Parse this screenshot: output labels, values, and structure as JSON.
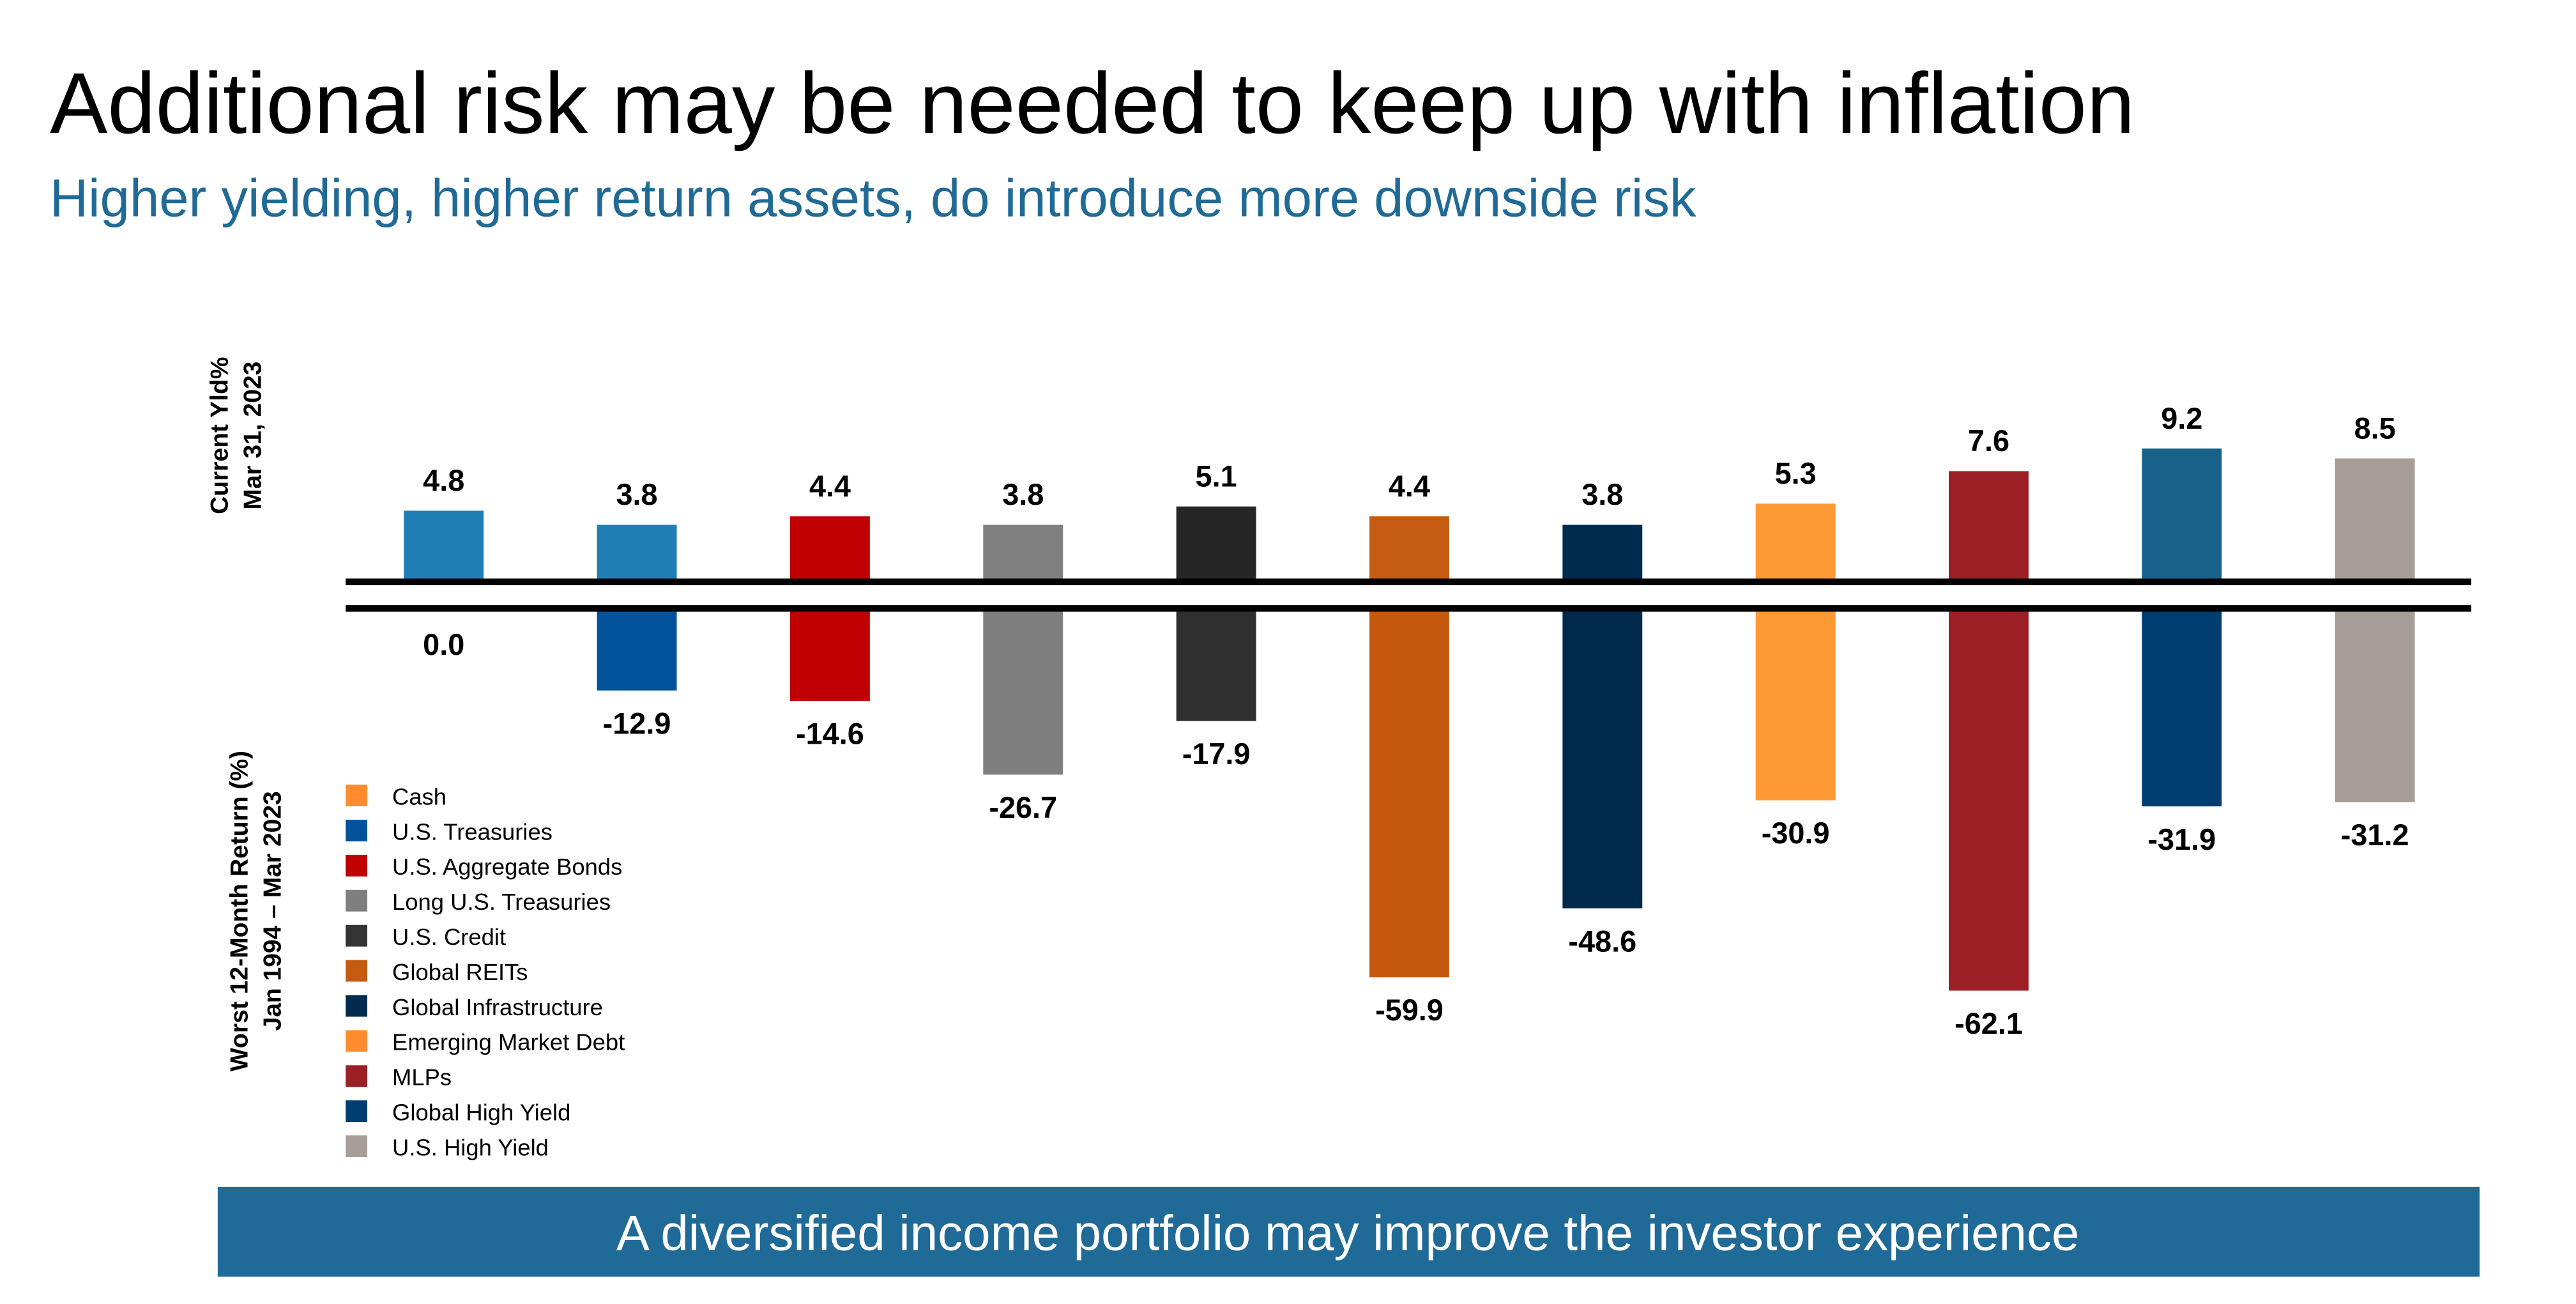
{
  "chart_data": {
    "type": "bar",
    "title": "Additional risk may be needed to keep up with inflation",
    "subtitle": "Higher yielding, higher return assets, do introduce more downside risk",
    "categories": [
      "Cash",
      "U.S. Treasuries",
      "U.S. Aggregate Bonds",
      "Long U.S. Treasuries",
      "U.S. Credit",
      "Global REITs",
      "Global Infrastructure",
      "Emerging Market Debt",
      "MLPs",
      "Global High Yield",
      "U.S. High Yield"
    ],
    "legend_colors": [
      "#ff8c2e",
      "#00539b",
      "#c00000",
      "#7f7f7f",
      "#333333",
      "#c55a11",
      "#002a4e",
      "#ff8c2e",
      "#9b1f24",
      "#003d70",
      "#a69d96"
    ],
    "panels": [
      {
        "label": [
          "Current Yld%",
          "Mar 31, 2023"
        ],
        "values": [
          4.8,
          3.8,
          4.4,
          3.8,
          5.1,
          4.4,
          3.8,
          5.3,
          7.6,
          9.2,
          8.5
        ],
        "colors": [
          "#1f7fb5",
          "#1f7fb5",
          "#c00000",
          "#808080",
          "#262626",
          "#c55a11",
          "#002a4e",
          "#ff9933",
          "#9b1f24",
          "#186189",
          "#a69d96"
        ]
      },
      {
        "label": [
          "Worst 12-Month Return (%)",
          "Jan 1994 – Mar 2023"
        ],
        "values": [
          0,
          -12.9,
          -14.6,
          -26.7,
          -17.9,
          -59.9,
          -48.6,
          -30.9,
          -62.1,
          -31.9,
          -31.2
        ],
        "value_labels": [
          "0.0",
          "-12.9",
          "-14.6",
          "-26.7",
          "-17.9",
          "-59.9",
          "-48.6",
          "-30.9",
          "-62.1",
          "-31.9",
          "-31.2"
        ],
        "colors": [
          "#1f7fb5",
          "#00539b",
          "#c00000",
          "#7f7f7f",
          "#2f2f2f",
          "#c55a0e",
          "#002a4b",
          "#ff9933",
          "#9b1f24",
          "#003d70",
          "#a69d96"
        ]
      }
    ],
    "footer": "A diversified income portfolio may improve the investor experience"
  }
}
